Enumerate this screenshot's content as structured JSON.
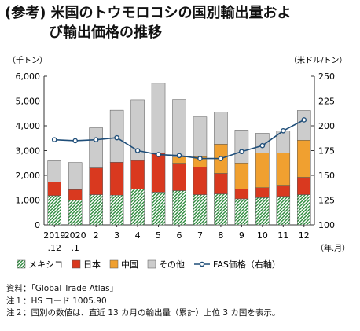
{
  "header": {
    "tag": "(参考)",
    "title_line1": "米国のトウモロコシの国別輸出量およ",
    "title_line2": "び輸出価格の推移"
  },
  "chart_data": {
    "type": "bar",
    "stacked": true,
    "left_axis_unit": "（千トン）",
    "right_axis_unit": "（米ドル/トン）",
    "x_unit": "（年.月）",
    "categories": [
      "2019.12",
      "2020.1",
      "2",
      "3",
      "4",
      "5",
      "6",
      "7",
      "8",
      "9",
      "10",
      "11",
      "12"
    ],
    "tick_top": [
      "2019",
      "2020",
      "2",
      "3",
      "4",
      "5",
      "6",
      "7",
      "8",
      "9",
      "10",
      "11",
      "12"
    ],
    "tick_bottom": [
      ".12",
      ".1",
      "",
      "",
      "",
      "",
      "",
      "",
      "",
      "",
      "",
      "",
      ""
    ],
    "ylim_left": [
      0,
      6000
    ],
    "yticks_left": [
      "0",
      "1,000",
      "2,000",
      "3,000",
      "4,000",
      "5,000",
      "6,000"
    ],
    "ylim_right": [
      100,
      250
    ],
    "yticks_right": [
      "100",
      "125",
      "150",
      "175",
      "200",
      "225",
      "250"
    ],
    "series": [
      {
        "name": "メキシコ",
        "color": "#2e8b3e",
        "pattern": "hatch",
        "values": [
          1180,
          1000,
          1220,
          1200,
          1450,
          1320,
          1380,
          1220,
          1250,
          1050,
          1100,
          1150,
          1220
        ]
      },
      {
        "name": "日本",
        "color": "#d9391f",
        "values": [
          550,
          420,
          1080,
          1330,
          1150,
          1570,
          1110,
          1120,
          830,
          400,
          400,
          450,
          700
        ]
      },
      {
        "name": "中国",
        "color": "#f0a030",
        "values": [
          0,
          0,
          0,
          0,
          0,
          0,
          250,
          420,
          1180,
          1050,
          1400,
          1300,
          1500
        ]
      },
      {
        "name": "その他",
        "color": "#cccccc",
        "values": [
          860,
          1100,
          1620,
          2100,
          2450,
          2830,
          2320,
          1600,
          1290,
          1330,
          800,
          900,
          1200
        ]
      }
    ],
    "line": {
      "name": "FAS価格（右軸）",
      "color": "#1f4e79",
      "values": [
        186,
        185,
        186,
        188,
        175,
        171,
        170,
        167,
        167,
        174,
        180,
        195,
        206
      ]
    },
    "grid": false,
    "legend_position": "bottom"
  },
  "notes": [
    "資料：「Global Trade Atlas」",
    "注１：HS コード 1005.90",
    "注２：国別の数値は、直近 13 カ月の輸出量（累計）上位 3 カ国を表示。"
  ]
}
